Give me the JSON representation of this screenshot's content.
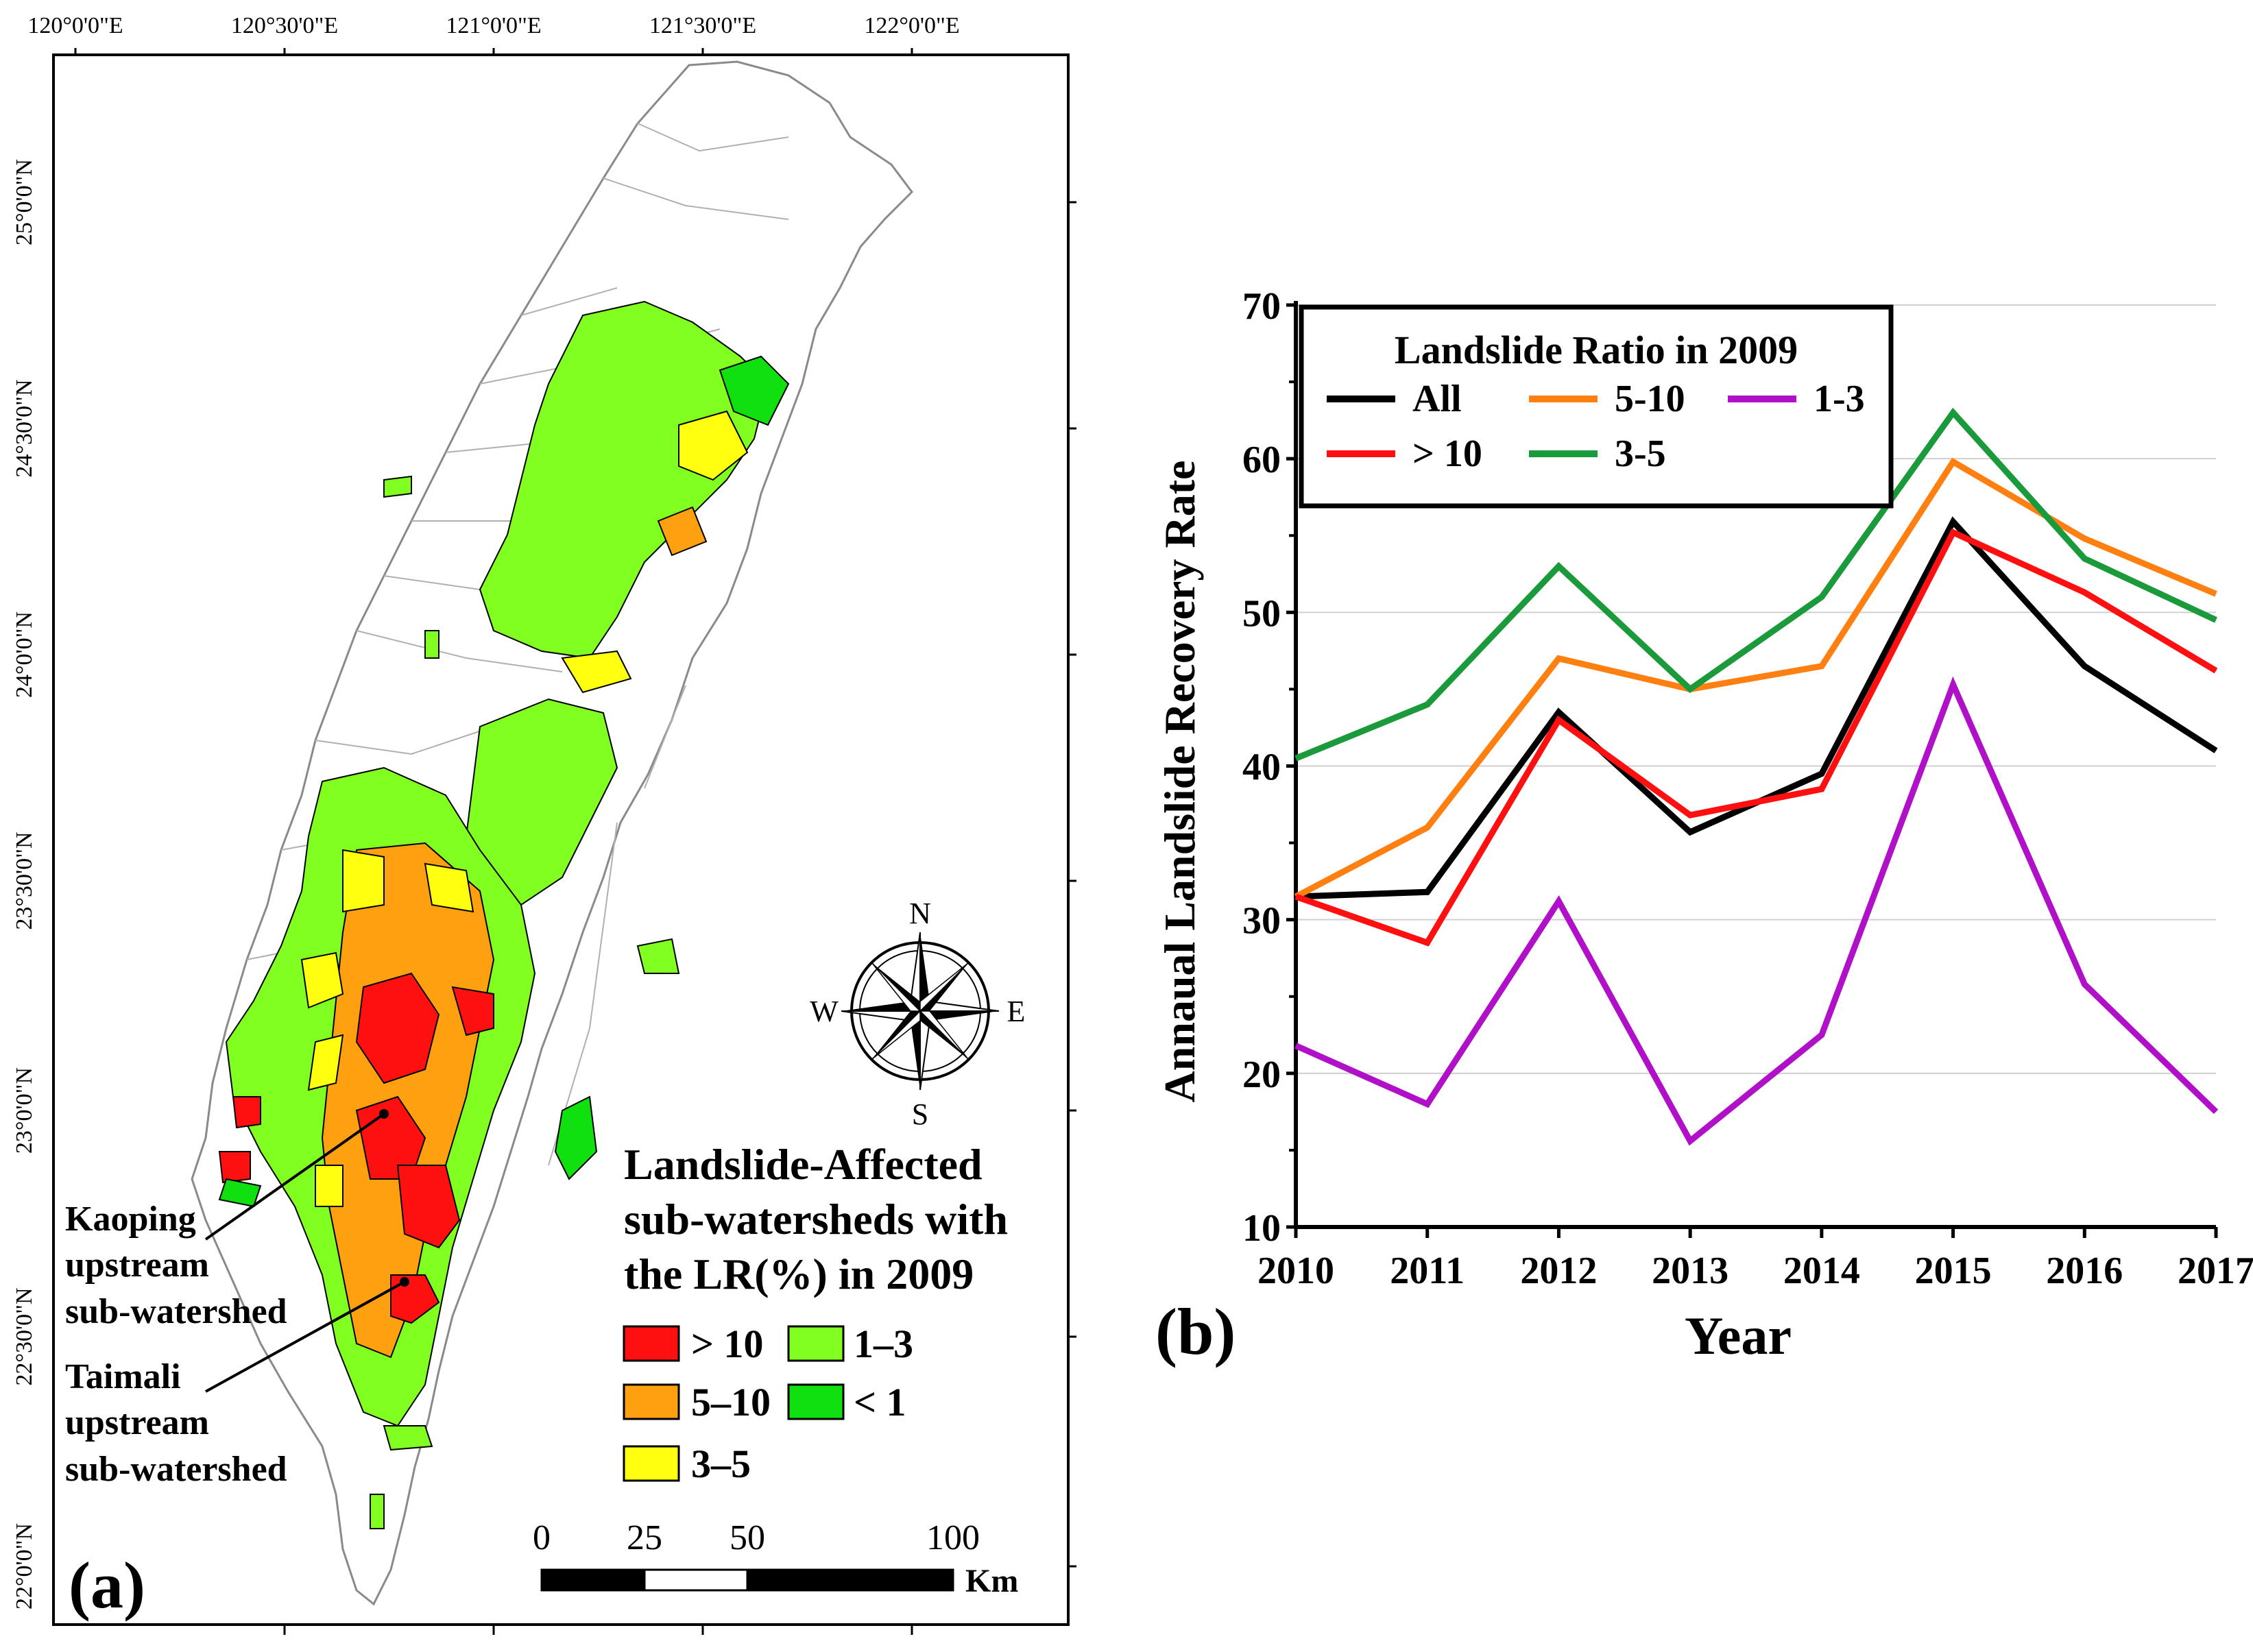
{
  "panel_a": {
    "label": "(a)",
    "lon_ticks": [
      "120°0'0\"E",
      "120°30'0\"E",
      "121°0'0\"E",
      "121°30'0\"E",
      "122°0'0\"E"
    ],
    "lat_ticks": [
      "25°0'0\"N",
      "24°30'0\"N",
      "24°0'0\"N",
      "23°30'0\"N",
      "23°0'0\"N",
      "22°30'0\"N",
      "22°0'0\"N"
    ],
    "compass": {
      "n": "N",
      "s": "S",
      "e": "E",
      "w": "W"
    },
    "legend": {
      "title_lines": [
        "Landslide-Affected",
        "sub-watersheds with",
        "the LR(%) in 2009"
      ],
      "items": [
        {
          "label": "> 10",
          "color": "#ff1010"
        },
        {
          "label": "1–3",
          "color": "#80ff20"
        },
        {
          "label": "5–10",
          "color": "#ffa010"
        },
        {
          "label": "< 1",
          "color": "#10e010"
        },
        {
          "label": "3–5",
          "color": "#ffff10"
        }
      ]
    },
    "annotations": {
      "kaoping": [
        "Kaoping",
        "upstream",
        "sub-watershed"
      ],
      "taimali": [
        "Taimali",
        "upstream",
        "sub-watershed"
      ]
    },
    "scalebar": {
      "ticks": [
        "0",
        "25",
        "50",
        "100"
      ],
      "unit": "Km"
    }
  },
  "panel_b": {
    "label": "(b)"
  },
  "chart_data": {
    "type": "line",
    "title": "",
    "xlabel": "Year",
    "ylabel": "Annaual Landslide Recovery Rate",
    "x": [
      "2010",
      "2011",
      "2012",
      "2013",
      "2014",
      "2015",
      "2016",
      "2017"
    ],
    "ylim": [
      10,
      70
    ],
    "yticks": [
      "10",
      "20",
      "30",
      "40",
      "50",
      "60",
      "70"
    ],
    "grid": true,
    "legend": {
      "title": "Landslide Ratio in 2009",
      "placement": "top-left"
    },
    "series": [
      {
        "name": "All",
        "color": "#000000",
        "values": [
          31.5,
          31.8,
          43.5,
          35.7,
          39.5,
          55.9,
          46.5,
          41.0
        ]
      },
      {
        "name": "5-10",
        "color": "#ff7f10",
        "values": [
          31.5,
          36.0,
          47.0,
          45.0,
          46.5,
          59.8,
          54.8,
          51.2
        ]
      },
      {
        "name": "1-3",
        "color": "#b010c8",
        "values": [
          21.8,
          18.0,
          31.2,
          15.6,
          22.5,
          45.3,
          25.8,
          17.5
        ]
      },
      {
        "name": "> 10",
        "color": "#ff1010",
        "values": [
          31.5,
          28.5,
          43.0,
          36.8,
          38.5,
          55.2,
          51.3,
          46.2
        ]
      },
      {
        "name": "3-5",
        "color": "#1a9a3a",
        "values": [
          40.5,
          44.0,
          53.0,
          45.0,
          51.0,
          63.0,
          53.5,
          49.5
        ]
      }
    ]
  }
}
